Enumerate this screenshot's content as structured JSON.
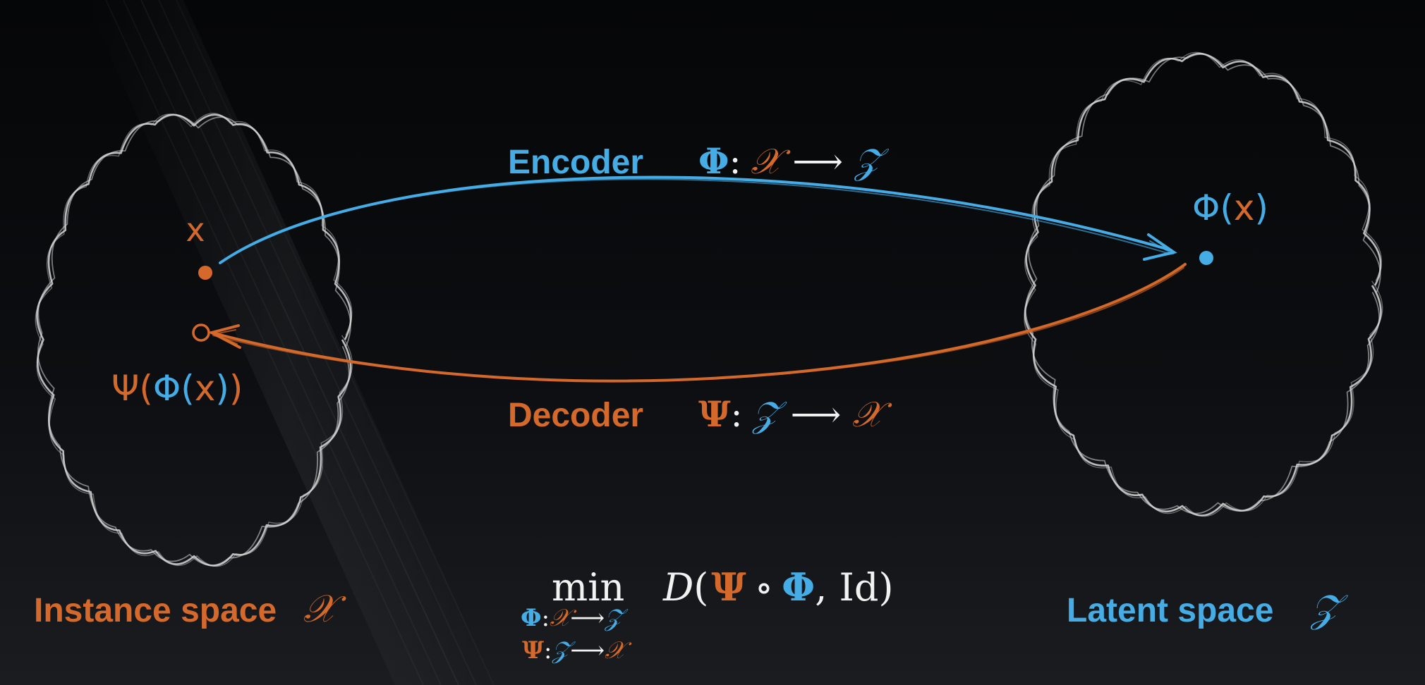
{
  "colors": {
    "blue": "#45ace6",
    "orange": "#d4692b",
    "white": "#f2f2f2",
    "cloud": "#d8d8d8",
    "background": "#0a0b0d"
  },
  "encoder": {
    "label": "Encoder",
    "map": "Φ",
    "colon": ":",
    "from": "𝒳",
    "arrow": "⟶",
    "to": "𝒵"
  },
  "decoder": {
    "label": "Decoder",
    "map": "Ψ",
    "colon": ":",
    "from": "𝒵",
    "arrow": "⟶",
    "to": "𝒳"
  },
  "points": {
    "x_label": "x",
    "phi_x_phi": "Φ",
    "phi_x_open": "(",
    "phi_x_x": "x",
    "phi_x_close": ")",
    "recon_psi": "Ψ",
    "recon_open": "(",
    "recon_phi": "Φ",
    "recon_inner_open": "(",
    "recon_x": "x",
    "recon_inner_close": ")",
    "recon_close": ")"
  },
  "spaces": {
    "instance_label": "Instance space",
    "instance_symbol": "𝒳",
    "latent_label": "Latent space",
    "latent_symbol": "𝒵"
  },
  "objective": {
    "min": "min",
    "D": "D",
    "open": "(",
    "psi": "Ψ",
    "compose": "∘",
    "phi": "Φ",
    "comma_id": ", Id",
    "close": ")",
    "sub1_map": "Φ",
    "sub1_colon": ":",
    "sub1_from": "𝒳",
    "sub1_arrow": "⟶",
    "sub1_to": "𝒵",
    "sub2_map": "Ψ",
    "sub2_colon": ":",
    "sub2_from": "𝒵",
    "sub2_arrow": "⟶",
    "sub2_to": "𝒳"
  }
}
